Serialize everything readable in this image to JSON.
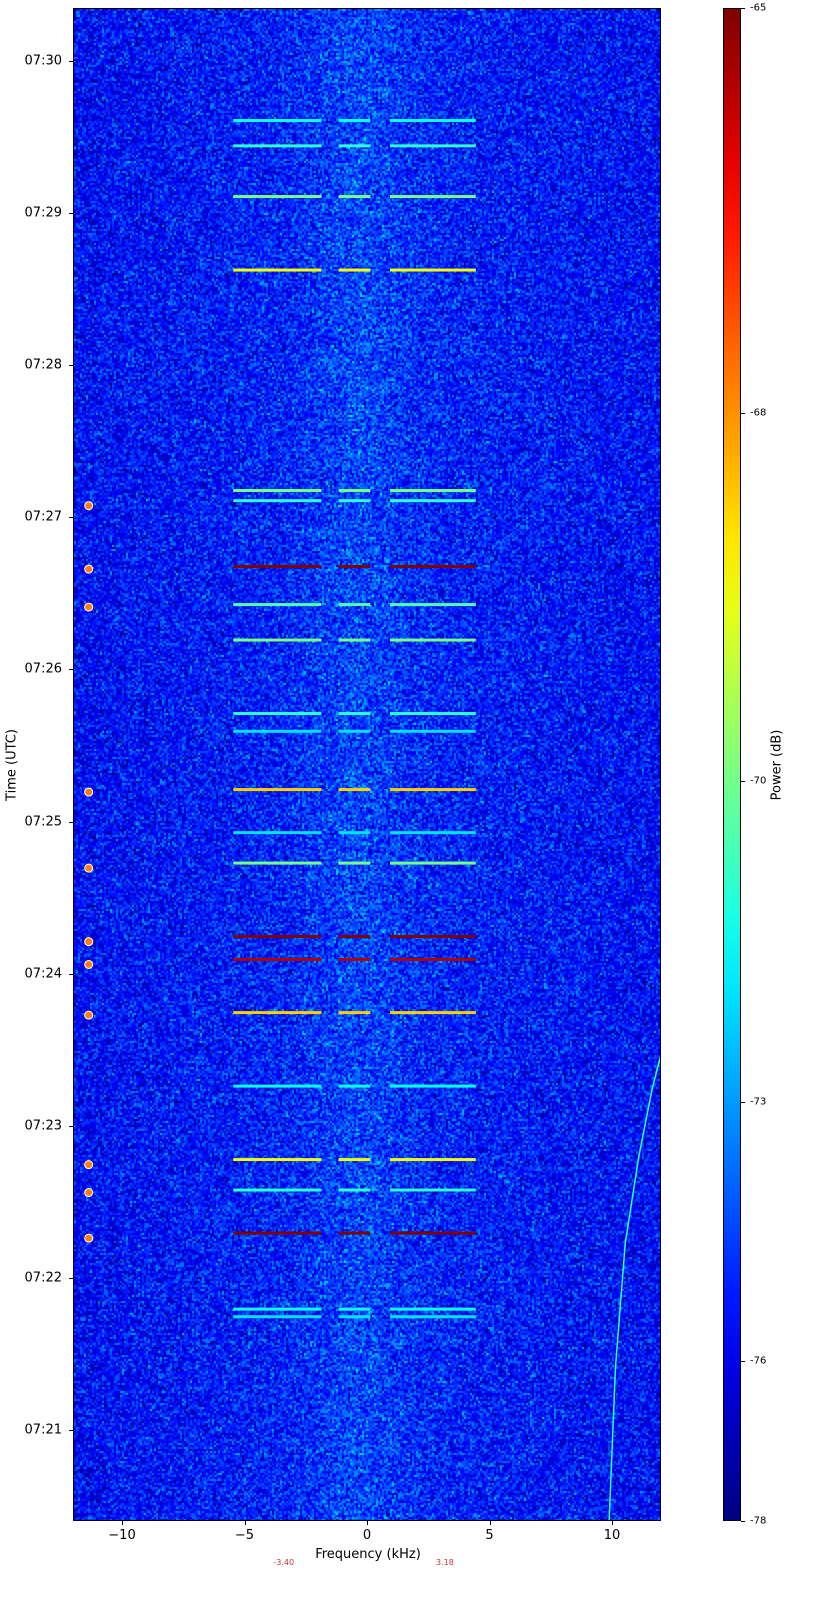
{
  "chart_data": {
    "type": "heatmap",
    "xlabel": "Frequency (kHz)",
    "ylabel": "Time (UTC)",
    "colorbar_label": "Power (dB)",
    "xlim": [
      -12,
      12
    ],
    "ylim": [
      "07:20:24",
      "07:30:21"
    ],
    "xticks": [
      -10,
      -5,
      0,
      5,
      10
    ],
    "xtick_labels": [
      "−10",
      "−5",
      "0",
      "5",
      "10"
    ],
    "yticks": [
      "07:21",
      "07:22",
      "07:23",
      "07:24",
      "07:25",
      "07:26",
      "07:27",
      "07:28",
      "07:29",
      "07:30"
    ],
    "colormap": "jet",
    "clim": [
      -78,
      -65
    ],
    "colorbar_ticks": [
      -65,
      -68,
      -70,
      -73,
      -76,
      -78
    ],
    "background_power_db": -75,
    "burst_segments_khz": [
      [
        -5.5,
        -1.9
      ],
      [
        -1.2,
        0.1
      ],
      [
        0.9,
        4.4
      ]
    ],
    "bursts": [
      {
        "time": "07:29:37",
        "power": -71.5
      },
      {
        "time": "07:29:27",
        "power": -71
      },
      {
        "time": "07:29:07",
        "power": -70
      },
      {
        "time": "07:28:38",
        "power": -69
      },
      {
        "time": "07:27:11",
        "power": -70
      },
      {
        "time": "07:27:07",
        "power": -71
      },
      {
        "time": "07:26:41",
        "power": -65
      },
      {
        "time": "07:26:26",
        "power": -70.5
      },
      {
        "time": "07:26:12",
        "power": -70
      },
      {
        "time": "07:25:43",
        "power": -71
      },
      {
        "time": "07:25:36",
        "power": -72
      },
      {
        "time": "07:25:13",
        "power": -68.5
      },
      {
        "time": "07:24:56",
        "power": -72
      },
      {
        "time": "07:24:44",
        "power": -70
      },
      {
        "time": "07:24:15",
        "power": -65
      },
      {
        "time": "07:24:06",
        "power": -65.5
      },
      {
        "time": "07:23:45",
        "power": -68.5
      },
      {
        "time": "07:23:16",
        "power": -71.5
      },
      {
        "time": "07:22:47",
        "power": -69
      },
      {
        "time": "07:22:35",
        "power": -71
      },
      {
        "time": "07:22:18",
        "power": -65
      },
      {
        "time": "07:21:48",
        "power": -71.5
      },
      {
        "time": "07:21:45",
        "power": -72
      }
    ],
    "markers": {
      "frequency_khz": -11.4,
      "color": "#ff7f0e",
      "times": [
        "07:27:05",
        "07:26:40",
        "07:26:25",
        "07:25:12",
        "07:24:42",
        "07:24:13",
        "07:24:04",
        "07:23:44",
        "07:22:45",
        "07:22:34",
        "07:22:16"
      ]
    },
    "drift_line": {
      "power": -71,
      "points": [
        [
          "07:20:24",
          9.84
        ],
        [
          "07:21:25",
          10.1
        ],
        [
          "07:22:14",
          10.5
        ],
        [
          "07:22:48",
          11.05
        ],
        [
          "07:23:15",
          11.6
        ],
        [
          "07:23:30",
          12
        ]
      ]
    },
    "annotations": [
      {
        "text": "-3.40",
        "frequency_khz": -3.4,
        "color": "#d03030"
      },
      {
        "text": "3.18",
        "frequency_khz": 3.18,
        "color": "#d03030"
      }
    ]
  }
}
